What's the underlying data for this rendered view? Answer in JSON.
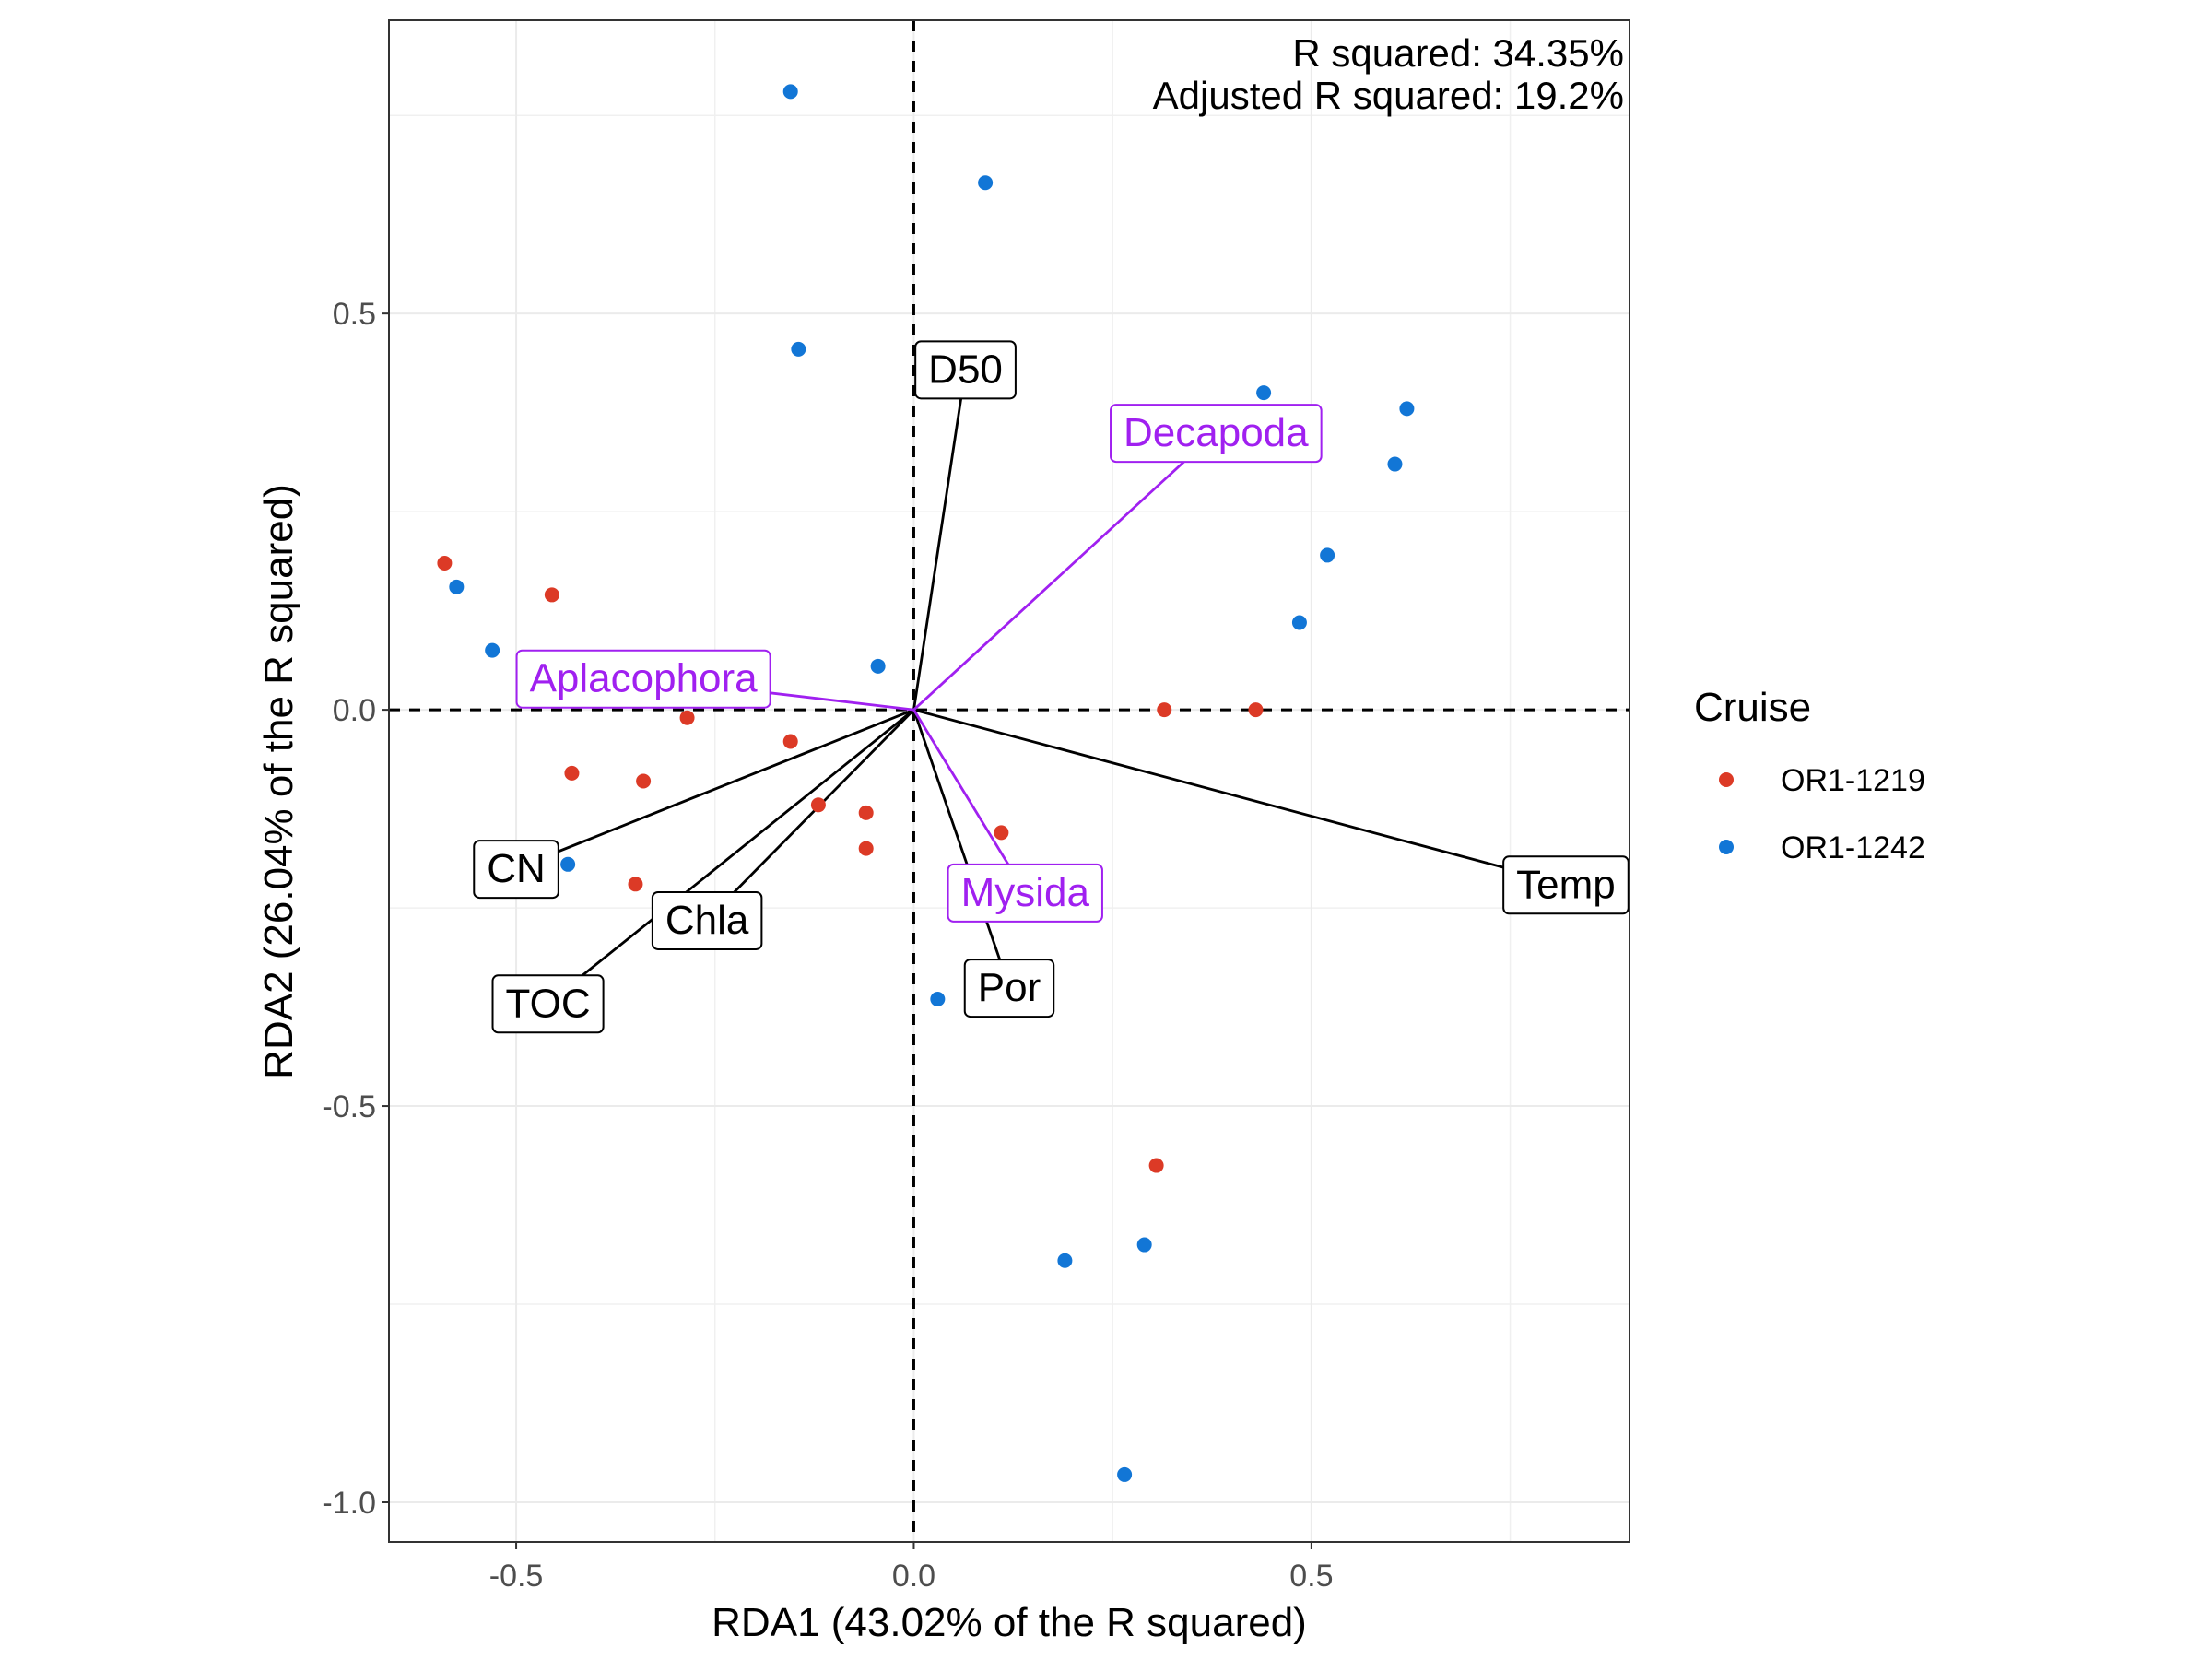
{
  "chart_data": {
    "type": "scatter",
    "title": "",
    "xlabel": "RDA1 (43.02% of the R squared)",
    "ylabel": "RDA2 (26.04% of the R squared)",
    "xlim": [
      -0.66,
      0.9
    ],
    "ylim": [
      -1.05,
      0.87
    ],
    "x_ticks": [
      -0.5,
      0.0,
      0.5
    ],
    "x_tick_labels": [
      "-0.5",
      "0.0",
      "0.5"
    ],
    "y_ticks": [
      -1.0,
      -0.5,
      0.0,
      0.5
    ],
    "y_tick_labels": [
      "-1.0",
      "-0.5",
      "0.0",
      "0.5"
    ],
    "grid": true,
    "annotations": [
      "R squared: 34.35%",
      "Adjusted R squared: 19.2%"
    ],
    "legend": {
      "title": "Cruise",
      "position": "right",
      "entries": [
        "OR1-1219",
        "OR1-1242"
      ]
    },
    "series": [
      {
        "name": "OR1-1219",
        "color": "#dc3a26",
        "points": [
          [
            -0.59,
            0.185
          ],
          [
            -0.455,
            0.145
          ],
          [
            -0.285,
            -0.01
          ],
          [
            -0.155,
            -0.04
          ],
          [
            -0.43,
            -0.08
          ],
          [
            -0.34,
            -0.09
          ],
          [
            -0.12,
            -0.12
          ],
          [
            -0.06,
            -0.13
          ],
          [
            -0.06,
            -0.175
          ],
          [
            0.11,
            -0.155
          ],
          [
            -0.35,
            -0.22
          ],
          [
            -0.505,
            -0.2
          ],
          [
            0.315,
            0.0
          ],
          [
            0.43,
            0.0
          ],
          [
            0.305,
            -0.575
          ]
        ]
      },
      {
        "name": "OR1-1242",
        "color": "#1276d6",
        "points": [
          [
            -0.155,
            0.78
          ],
          [
            0.09,
            0.665
          ],
          [
            -0.145,
            0.455
          ],
          [
            0.44,
            0.4
          ],
          [
            0.26,
            0.37
          ],
          [
            0.27,
            0.37
          ],
          [
            0.62,
            0.38
          ],
          [
            0.605,
            0.31
          ],
          [
            0.52,
            0.195
          ],
          [
            0.485,
            0.11
          ],
          [
            -0.575,
            0.155
          ],
          [
            -0.53,
            0.075
          ],
          [
            -0.045,
            0.055
          ],
          [
            -0.435,
            -0.195
          ],
          [
            0.03,
            -0.365
          ],
          [
            0.19,
            -0.695
          ],
          [
            0.29,
            -0.675
          ],
          [
            0.265,
            -0.965
          ]
        ]
      }
    ],
    "vectors": [
      {
        "label": "D50",
        "color": "#000000",
        "x": 0.065,
        "y": 0.43
      },
      {
        "label": "Temp",
        "color": "#000000",
        "x": 0.82,
        "y": -0.22
      },
      {
        "label": "CN",
        "color": "#000000",
        "x": -0.5,
        "y": -0.2
      },
      {
        "label": "Chla",
        "color": "#000000",
        "x": -0.26,
        "y": -0.265
      },
      {
        "label": "TOC",
        "color": "#000000",
        "x": -0.46,
        "y": -0.37
      },
      {
        "label": "Por",
        "color": "#000000",
        "x": 0.12,
        "y": -0.35
      },
      {
        "label": "Decapoda",
        "color": "#a020f0",
        "x": 0.38,
        "y": 0.35
      },
      {
        "label": "Aplacophora",
        "color": "#a020f0",
        "x": -0.34,
        "y": 0.04
      },
      {
        "label": "Mysida",
        "color": "#a020f0",
        "x": 0.14,
        "y": -0.23
      }
    ]
  }
}
